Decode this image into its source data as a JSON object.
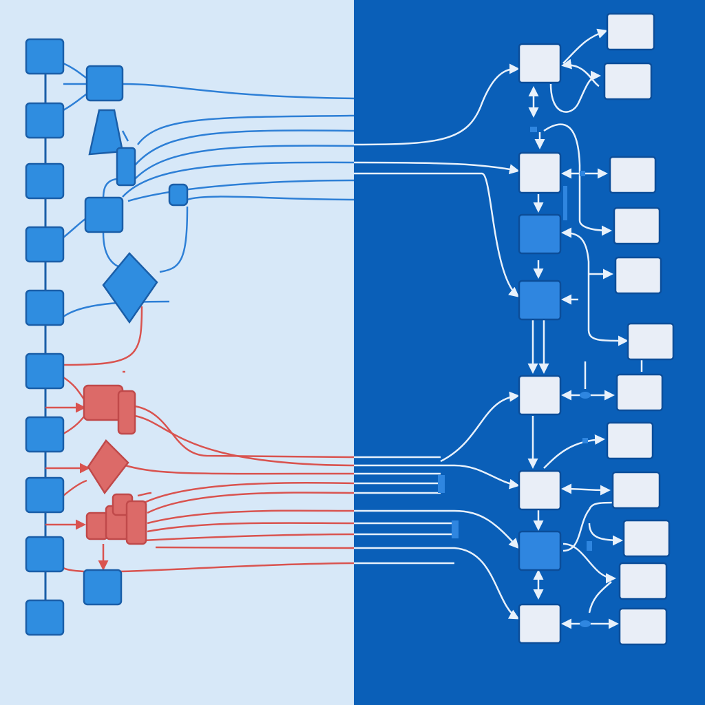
{
  "diagram": {
    "kind": "flowchart-comparison",
    "text_labels": [],
    "panels": [
      {
        "id": "left",
        "background": "#d7e8f8",
        "theme": "light"
      },
      {
        "id": "right",
        "background": "#0a5fb8",
        "theme": "dark"
      }
    ],
    "colors": {
      "node_blue": "#2f8de0",
      "node_stroke": "#1a5ea8",
      "node_red": "#dc6a68",
      "red_stroke": "#c0494a",
      "line_blue": "#2d7fd6",
      "line_red": "#d9534f",
      "right_node_fill": "#e9eef7",
      "right_node_stroke": "#0b4d99",
      "right_highlight": "#2f86e0",
      "right_line": "#e8f1fb"
    },
    "left_column_nodes": 10,
    "right_center_nodes": 9,
    "right_side_nodes": 13,
    "connector_count": {
      "blue": 6,
      "red": 7,
      "right_incoming": 12
    }
  }
}
